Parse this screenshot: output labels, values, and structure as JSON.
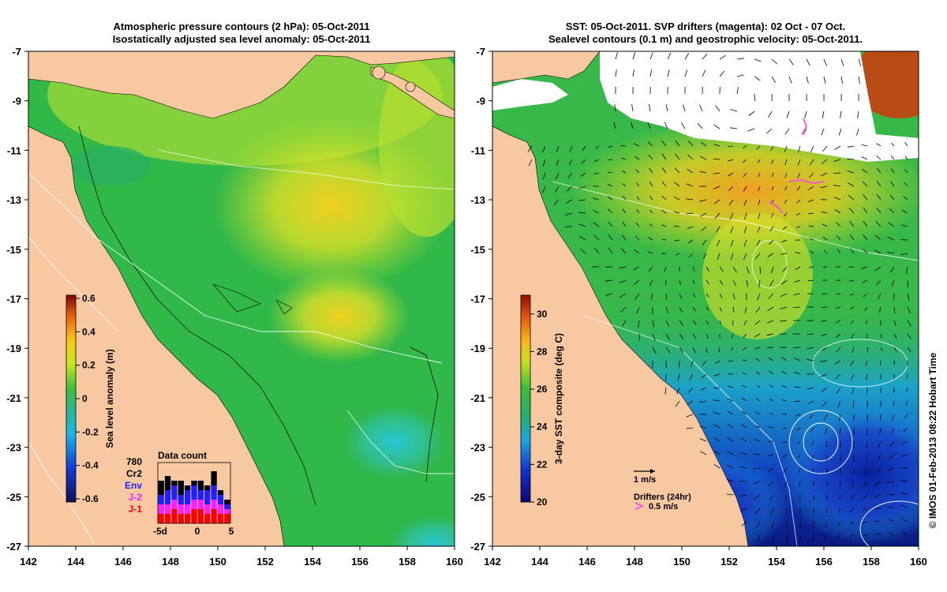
{
  "left_panel": {
    "title_line1": "Atmospheric pressure contours (2 hPa): 05-Oct-2011",
    "title_line2": "Isostatically adjusted sea level anomaly: 05-Oct-2011",
    "colorbar_label": "Sea level anomaly (m)",
    "colorbar_ticks": [
      "0.6",
      "0.4",
      "0.2",
      "0",
      "-0.2",
      "-0.4",
      "-0.6"
    ],
    "inset": {
      "title": "Data count",
      "total": "780",
      "legend": [
        {
          "label": "Cr2",
          "color": "#000000"
        },
        {
          "label": "Env",
          "color": "#2020ff"
        },
        {
          "label": "J-2",
          "color": "#ff20ff"
        },
        {
          "label": "J-1",
          "color": "#ff0000"
        }
      ],
      "xtick_left": "-5d",
      "xtick_mid": "0",
      "xtick_right": "5"
    }
  },
  "right_panel": {
    "title_line1": "SST: 05-Oct-2011. SVP drifters (magenta): 02 Oct - 07 Oct.",
    "title_line2": "Sealevel contours (0.1 m) and geostrophic velocity: 05-Oct-2011.",
    "colorbar_label": "3-day SST composite (deg C)",
    "colorbar_ticks": [
      "30",
      "28",
      "26",
      "24",
      "22",
      "20"
    ],
    "velocity_scale_label": "1 m/s",
    "drifters_label": "Drifters (24hr)",
    "drifter_speed_label": "0.5 m/s"
  },
  "side_credit": "© IMOS 01-Feb-2013 08:22 Hobart Time",
  "colors": {
    "land": "#f8c8a0",
    "sla_bg": "#30b848",
    "cloud": "#ffffff",
    "drifter": "#ff40ff"
  },
  "chart_data": [
    {
      "type": "heatmap",
      "title": "Atmospheric pressure contours (2 hPa): 05-Oct-2011 / Isostatically adjusted sea level anomaly: 05-Oct-2011",
      "x_ticks": [
        "142",
        "144",
        "146",
        "148",
        "150",
        "152",
        "154",
        "156",
        "158",
        "160"
      ],
      "y_ticks": [
        "-7",
        "-9",
        "-11",
        "-13",
        "-15",
        "-17",
        "-19",
        "-21",
        "-23",
        "-25",
        "-27"
      ],
      "xlim": [
        142,
        160
      ],
      "ylim": [
        -27,
        -7
      ],
      "colorbar": {
        "label": "Sea level anomaly (m)",
        "min": -0.6,
        "max": 0.6
      },
      "features": [
        {
          "name": "positive anomaly",
          "lon": 154,
          "lat": -13,
          "value": 0.25
        },
        {
          "name": "positive anomaly",
          "lon": 154.5,
          "lat": -17.5,
          "value": 0.2
        },
        {
          "name": "negative anomaly",
          "lon": 156.8,
          "lat": -23,
          "value": -0.3
        },
        {
          "name": "negative anomaly",
          "lon": 158.5,
          "lat": -26.5,
          "value": -0.35
        }
      ],
      "data_count_histogram": {
        "x": [
          -5,
          -4,
          -3,
          -2,
          -1,
          0,
          1,
          2,
          3,
          4,
          5
        ],
        "series": [
          {
            "name": "J-1",
            "values": [
              2,
              2,
              3,
              2,
              2,
              3,
              3,
              2,
              3,
              2,
              2
            ]
          },
          {
            "name": "J-2",
            "values": [
              2,
              2,
              2,
              2,
              2,
              2,
              2,
              2,
              2,
              2,
              1
            ]
          },
          {
            "name": "Env",
            "values": [
              2,
              3,
              3,
              2,
              3,
              3,
              2,
              3,
              3,
              2,
              1
            ]
          },
          {
            "name": "Cr2",
            "values": [
              3,
              3,
              1,
              3,
              1,
              1,
              2,
              1,
              3,
              1,
              1
            ]
          }
        ]
      }
    },
    {
      "type": "heatmap",
      "title": "SST: 05-Oct-2011. SVP drifters (magenta): 02 Oct - 07 Oct. / Sealevel contours (0.1 m) and geostrophic velocity: 05-Oct-2011.",
      "x_ticks": [
        "142",
        "144",
        "146",
        "148",
        "150",
        "152",
        "154",
        "156",
        "158",
        "160"
      ],
      "y_ticks": [
        "-7",
        "-9",
        "-11",
        "-13",
        "-15",
        "-17",
        "-19",
        "-21",
        "-23",
        "-25",
        "-27"
      ],
      "xlim": [
        142,
        160
      ],
      "ylim": [
        -27,
        -7
      ],
      "colorbar": {
        "label": "3-day SST composite (deg C)",
        "min": 20,
        "max": 31
      },
      "features": [
        {
          "name": "warm water",
          "lon": 152.5,
          "lat": -12,
          "value": 28.5
        },
        {
          "name": "warm water",
          "lon": 159,
          "lat": -8,
          "value": 30
        },
        {
          "name": "cool water",
          "lon": 158,
          "lat": -25,
          "value": 21
        },
        {
          "name": "cool water",
          "lon": 155,
          "lat": -26,
          "value": 21.5
        }
      ]
    }
  ]
}
